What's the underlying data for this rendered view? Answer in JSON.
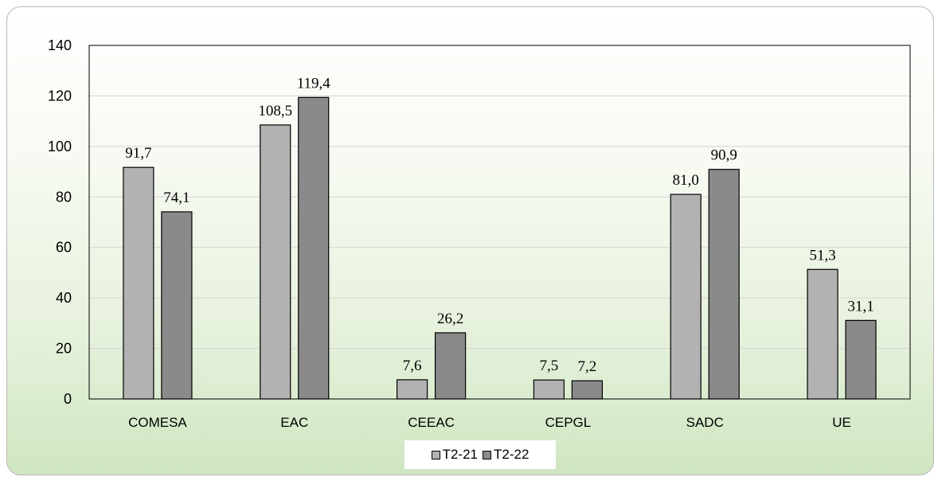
{
  "chart_data": {
    "type": "bar",
    "categories": [
      "COMESA",
      "EAC",
      "CEEAC",
      "CEPGL",
      "SADC",
      "UE"
    ],
    "series": [
      {
        "name": "T2-21",
        "values": [
          91.7,
          108.5,
          7.6,
          7.5,
          81.0,
          51.3
        ],
        "labels": [
          "91,7",
          "108,5",
          "7,6",
          "7,5",
          "81,0",
          "51,3"
        ],
        "color": "#b2b2b2"
      },
      {
        "name": "T2-22",
        "values": [
          74.1,
          119.4,
          26.2,
          7.2,
          90.9,
          31.1
        ],
        "labels": [
          "74,1",
          "119,4",
          "26,2",
          "7,2",
          "90,9",
          "31,1"
        ],
        "color": "#8a8a8a"
      }
    ],
    "ylim": [
      0,
      140
    ],
    "yticks": [
      0,
      20,
      40,
      60,
      80,
      100,
      120,
      140
    ],
    "grid": true,
    "legend_position": "bottom",
    "title": "",
    "xlabel": "",
    "ylabel": ""
  }
}
